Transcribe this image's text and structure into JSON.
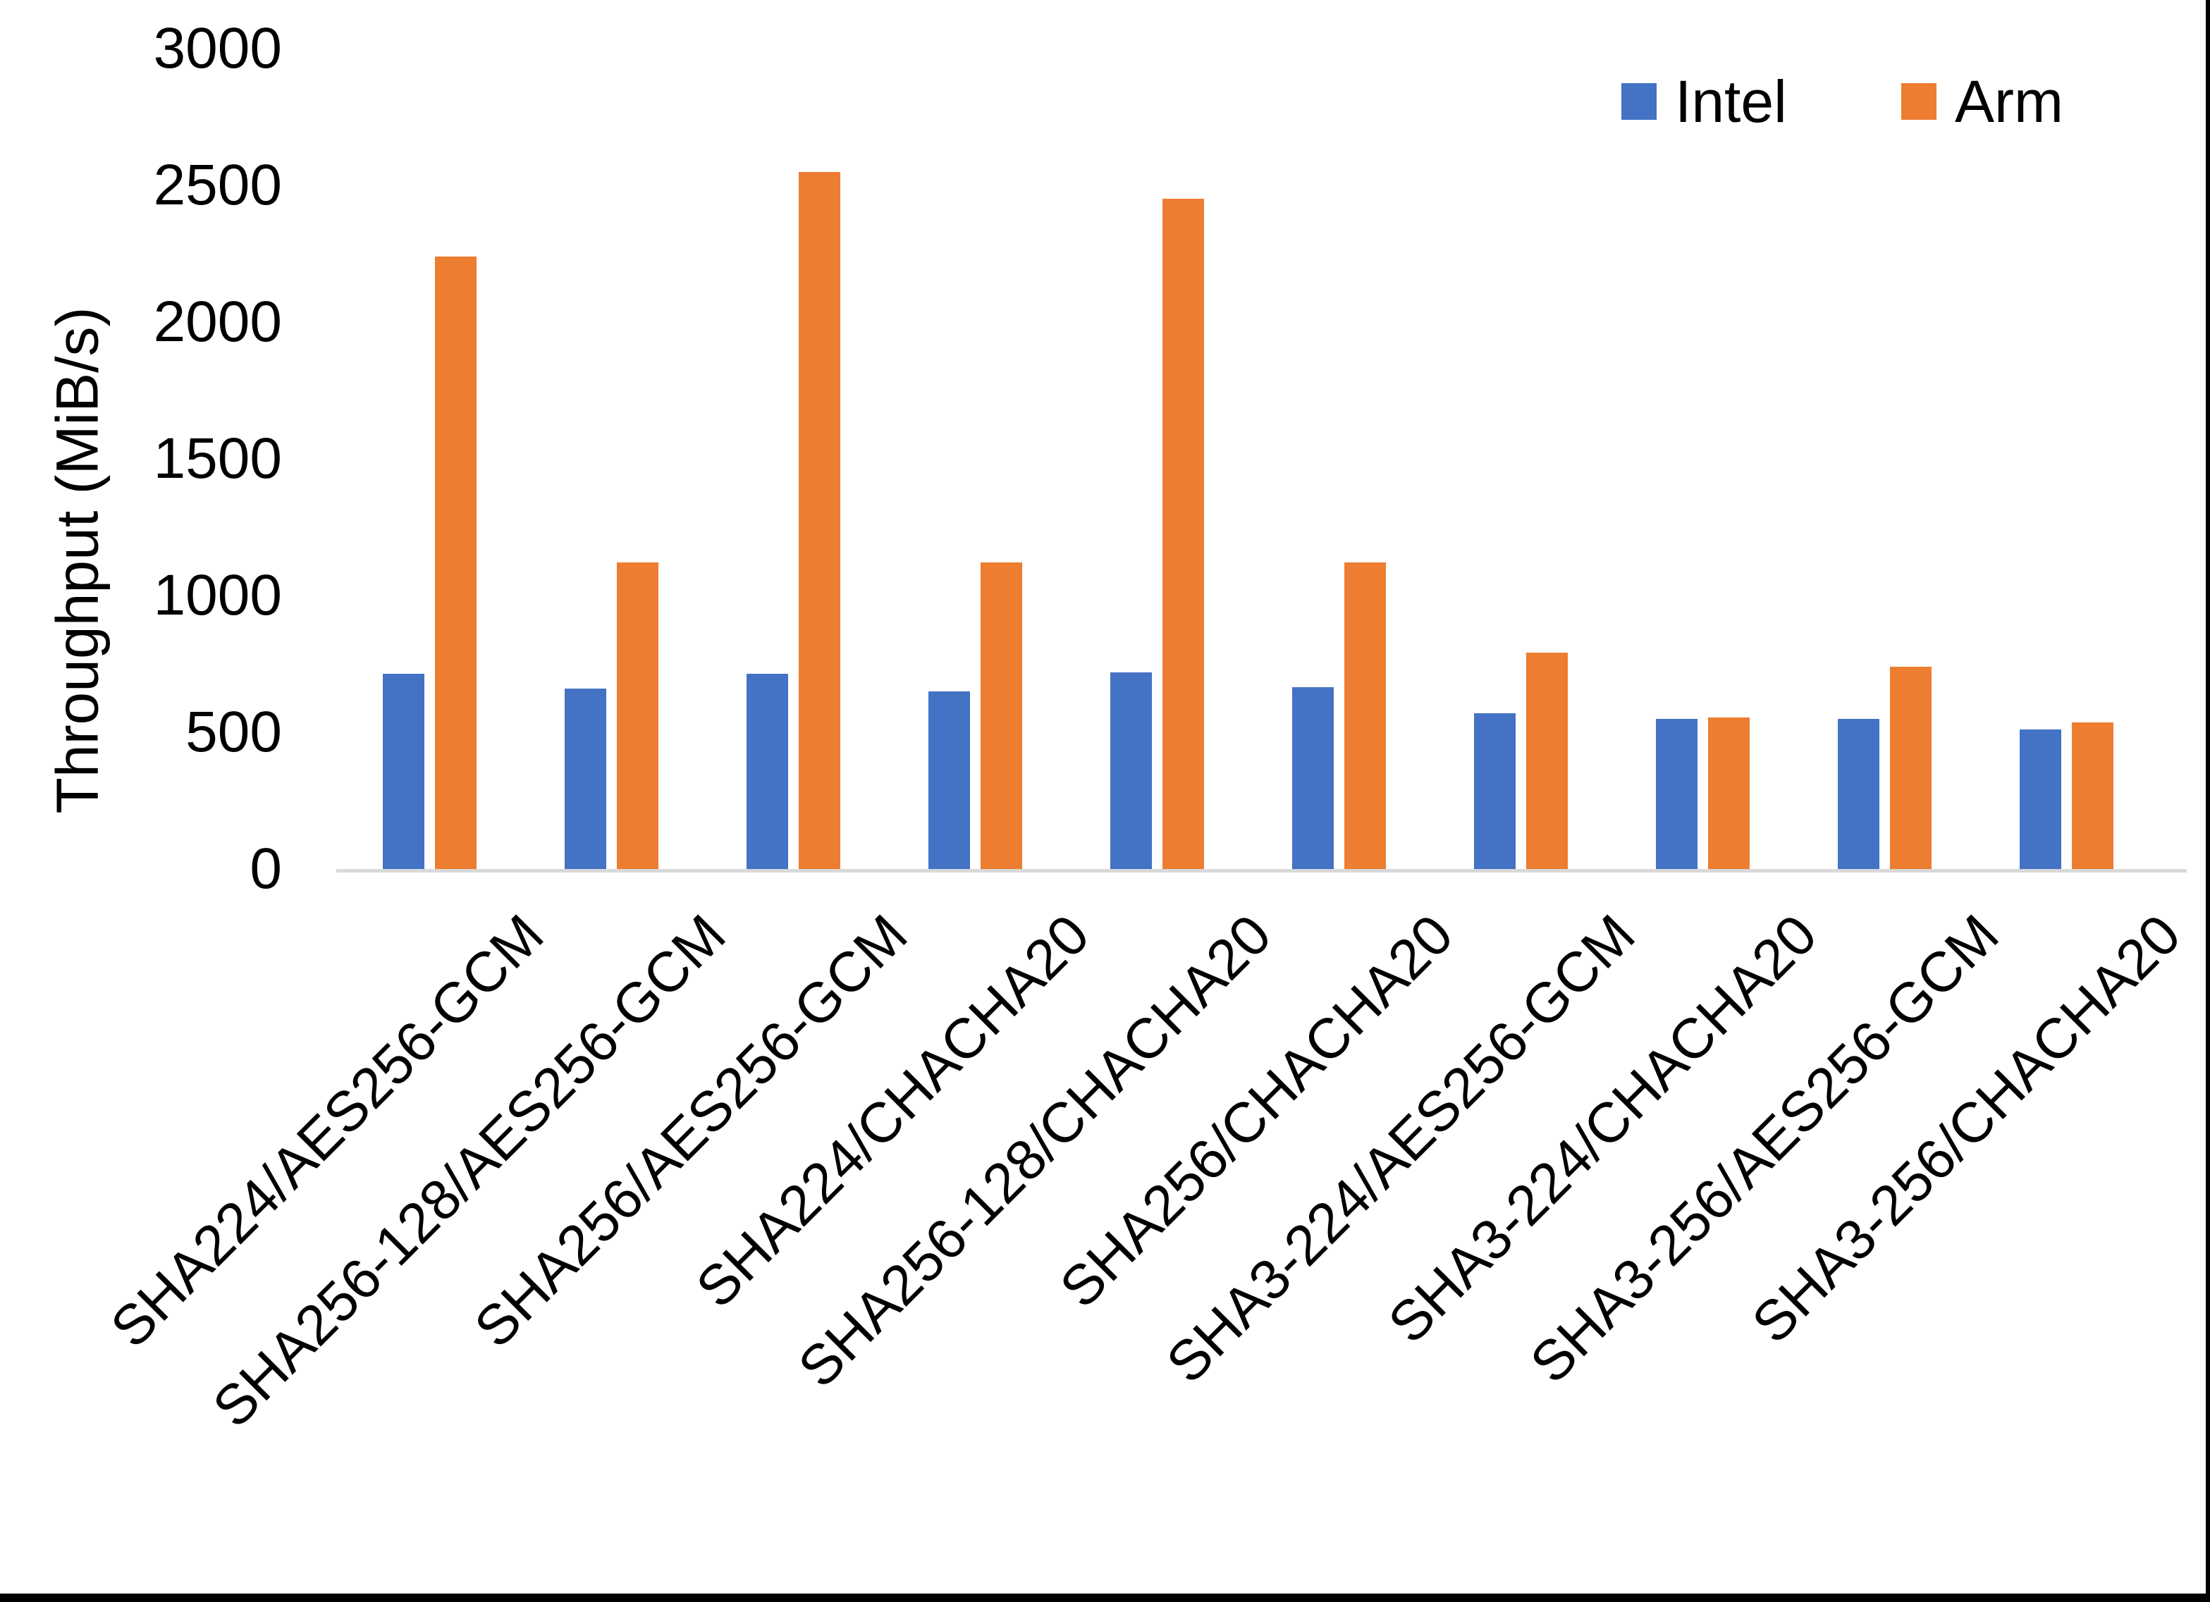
{
  "chart_data": {
    "type": "bar",
    "title": "",
    "xlabel": "",
    "ylabel": "Throughput (MiB/s)",
    "ylim": [
      0,
      3000
    ],
    "yticks": [
      0,
      500,
      1000,
      1500,
      2000,
      2500,
      3000
    ],
    "grid": false,
    "legend_position": "top-right",
    "categories": [
      "SHA224/AES256-GCM",
      "SHA256-128/AES256-GCM",
      "SHA256/AES256-GCM",
      "SHA224/CHACHA20",
      "SHA256-128/CHACHA20",
      "SHA256/CHACHA20",
      "SHA3-224/AES256-GCM",
      "SHA3-224/CHACHA20",
      "SHA3-256/AES256-GCM",
      "SHA3-256/CHACHA20"
    ],
    "series": [
      {
        "name": "Intel",
        "color": "#4472C4",
        "values": [
          715,
          660,
          715,
          650,
          720,
          665,
          570,
          550,
          550,
          510
        ]
      },
      {
        "name": "Arm",
        "color": "#ED7D31",
        "values": [
          2240,
          1120,
          2550,
          1120,
          2450,
          1120,
          790,
          555,
          740,
          535
        ]
      }
    ]
  },
  "legend": {
    "items": [
      {
        "label": "Intel",
        "color": "#4472C4"
      },
      {
        "label": "Arm",
        "color": "#ED7D31"
      }
    ]
  },
  "colors": {
    "axis_line": "#D9D9D9",
    "text": "#000000",
    "background": "#FFFFFF",
    "page_border": "#000000"
  }
}
